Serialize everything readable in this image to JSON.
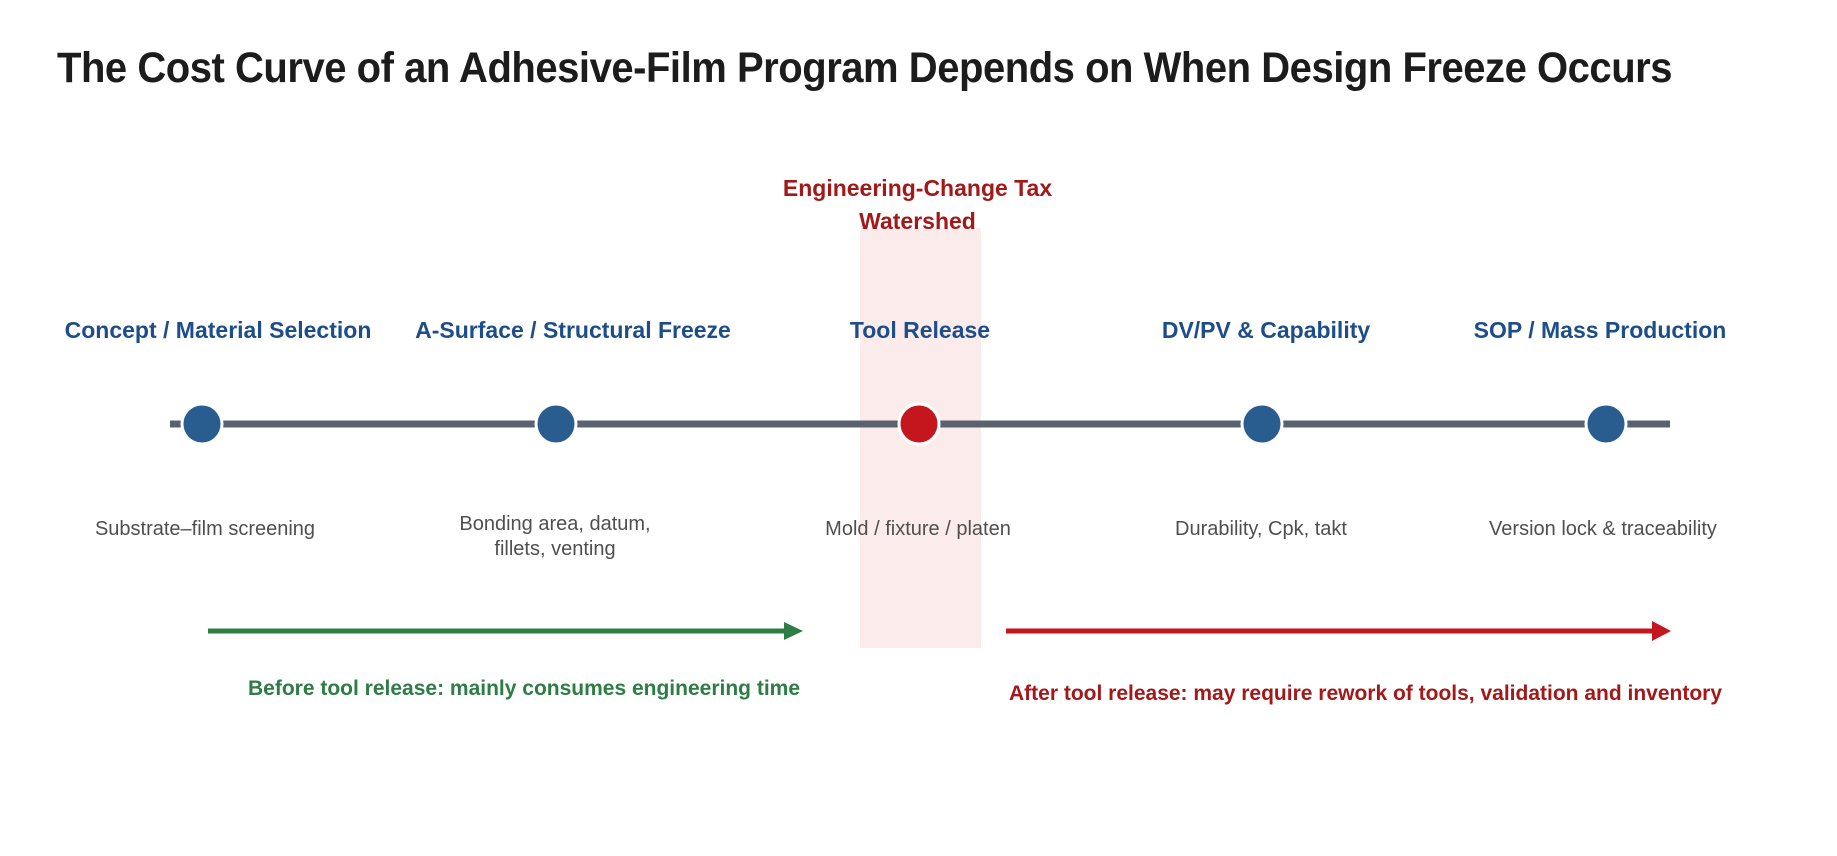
{
  "title": "The Cost Curve of an Adhesive-Film Program Depends on When Design Freeze Occurs",
  "watershed": {
    "label_line1": "Engineering-Change Tax",
    "label_line2": "Watershed"
  },
  "stages": [
    {
      "title": "Concept / Material Selection",
      "desc_lines": [
        "Substrate–film screening"
      ],
      "highlight": false
    },
    {
      "title": "A-Surface / Structural Freeze",
      "desc_lines": [
        "Bonding area, datum,",
        "fillets, venting"
      ],
      "highlight": false
    },
    {
      "title": "Tool Release",
      "desc_lines": [
        "Mold / fixture / platen"
      ],
      "highlight": true
    },
    {
      "title": "DV/PV & Capability",
      "desc_lines": [
        "Durability, Cpk, takt"
      ],
      "highlight": false
    },
    {
      "title": "SOP / Mass Production",
      "desc_lines": [
        "Version lock & traceability"
      ],
      "highlight": false
    }
  ],
  "arrows": {
    "before": "Before tool release:  mainly consumes engineering time",
    "after": "After tool release:  may require rework of tools, validation and inventory"
  },
  "colors": {
    "timeline": "#5a6270",
    "node": "#2a5d8f",
    "node_highlight": "#c4161c",
    "before_arrow": "#2e7d45",
    "after_arrow": "#c4161c",
    "watershed_band": "#fcebeb"
  }
}
